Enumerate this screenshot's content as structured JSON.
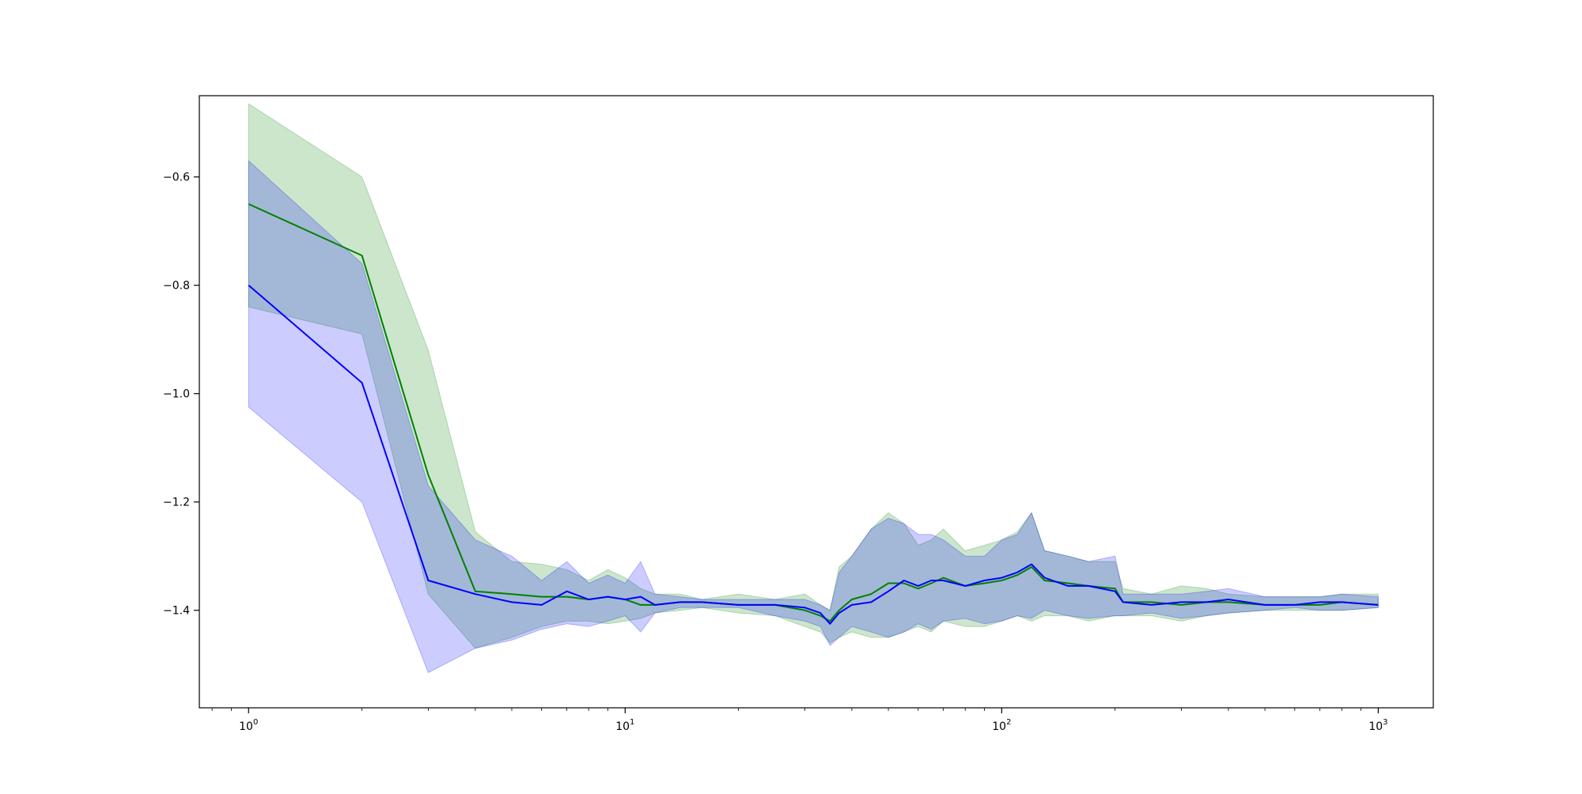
{
  "colors": {
    "green": "#008000",
    "blue": "#0000ff",
    "green_fill": "#008000",
    "blue_fill": "#0000ff",
    "axes": "#000000"
  },
  "chart_data": {
    "type": "line",
    "title": "",
    "xlabel": "",
    "ylabel": "",
    "xscale": "log",
    "xlim": [
      0.74,
      1400
    ],
    "ylim": [
      -1.58,
      -0.45
    ],
    "grid": false,
    "legend": "none",
    "x_ticks": [
      {
        "value": 1,
        "base": "10",
        "exp": "0"
      },
      {
        "value": 10,
        "base": "10",
        "exp": "1"
      },
      {
        "value": 100,
        "base": "10",
        "exp": "2"
      },
      {
        "value": 1000,
        "base": "10",
        "exp": "3"
      }
    ],
    "y_ticks": [
      {
        "value": -0.6,
        "label": "−0.6"
      },
      {
        "value": -0.8,
        "label": "−0.8"
      },
      {
        "value": -1.0,
        "label": "−1.0"
      },
      {
        "value": -1.2,
        "label": "−1.2"
      },
      {
        "value": -1.4,
        "label": "−1.4"
      }
    ],
    "series": [
      {
        "color": "green",
        "x": [
          1,
          2,
          3,
          4,
          5,
          6,
          7,
          8,
          9,
          10,
          11,
          12,
          14,
          16,
          20,
          25,
          30,
          33,
          35,
          37,
          40,
          45,
          50,
          55,
          60,
          65,
          70,
          80,
          90,
          100,
          110,
          120,
          130,
          150,
          170,
          200,
          210,
          250,
          300,
          350,
          400,
          500,
          600,
          700,
          800,
          1000
        ],
        "y": [
          -0.65,
          -0.745,
          -1.15,
          -1.365,
          -1.37,
          -1.375,
          -1.375,
          -1.38,
          -1.375,
          -1.38,
          -1.39,
          -1.39,
          -1.385,
          -1.385,
          -1.39,
          -1.39,
          -1.4,
          -1.41,
          -1.42,
          -1.4,
          -1.38,
          -1.37,
          -1.35,
          -1.35,
          -1.36,
          -1.35,
          -1.34,
          -1.355,
          -1.35,
          -1.345,
          -1.335,
          -1.32,
          -1.345,
          -1.35,
          -1.355,
          -1.36,
          -1.385,
          -1.385,
          -1.39,
          -1.385,
          -1.385,
          -1.39,
          -1.39,
          -1.39,
          -1.385,
          -1.39
        ],
        "upper": [
          -0.465,
          -0.6,
          -0.92,
          -1.255,
          -1.31,
          -1.315,
          -1.325,
          -1.345,
          -1.325,
          -1.34,
          -1.36,
          -1.37,
          -1.37,
          -1.38,
          -1.37,
          -1.38,
          -1.37,
          -1.39,
          -1.4,
          -1.32,
          -1.3,
          -1.25,
          -1.22,
          -1.24,
          -1.28,
          -1.27,
          -1.25,
          -1.29,
          -1.28,
          -1.27,
          -1.255,
          -1.22,
          -1.29,
          -1.3,
          -1.31,
          -1.31,
          -1.36,
          -1.37,
          -1.355,
          -1.36,
          -1.37,
          -1.375,
          -1.375,
          -1.375,
          -1.37,
          -1.37
        ],
        "lower": [
          -0.84,
          -0.89,
          -1.37,
          -1.47,
          -1.45,
          -1.43,
          -1.42,
          -1.42,
          -1.425,
          -1.42,
          -1.415,
          -1.405,
          -1.4,
          -1.395,
          -1.405,
          -1.41,
          -1.43,
          -1.44,
          -1.46,
          -1.45,
          -1.44,
          -1.45,
          -1.45,
          -1.44,
          -1.43,
          -1.44,
          -1.42,
          -1.43,
          -1.43,
          -1.42,
          -1.41,
          -1.42,
          -1.41,
          -1.41,
          -1.42,
          -1.41,
          -1.41,
          -1.41,
          -1.42,
          -1.41,
          -1.405,
          -1.4,
          -1.4,
          -1.4,
          -1.4,
          -1.395
        ]
      },
      {
        "color": "blue",
        "x": [
          1,
          2,
          3,
          4,
          5,
          6,
          7,
          8,
          9,
          10,
          11,
          12,
          14,
          16,
          20,
          25,
          30,
          33,
          35,
          37,
          40,
          45,
          50,
          55,
          60,
          65,
          70,
          80,
          90,
          100,
          110,
          120,
          130,
          150,
          170,
          200,
          210,
          250,
          300,
          350,
          400,
          500,
          600,
          700,
          800,
          1000
        ],
        "y": [
          -0.8,
          -0.98,
          -1.345,
          -1.37,
          -1.385,
          -1.39,
          -1.365,
          -1.38,
          -1.375,
          -1.38,
          -1.375,
          -1.39,
          -1.385,
          -1.385,
          -1.39,
          -1.39,
          -1.395,
          -1.405,
          -1.425,
          -1.405,
          -1.39,
          -1.385,
          -1.365,
          -1.345,
          -1.355,
          -1.345,
          -1.345,
          -1.355,
          -1.345,
          -1.34,
          -1.33,
          -1.315,
          -1.34,
          -1.355,
          -1.355,
          -1.365,
          -1.385,
          -1.39,
          -1.385,
          -1.385,
          -1.38,
          -1.39,
          -1.39,
          -1.385,
          -1.385,
          -1.39
        ],
        "upper": [
          -0.57,
          -0.76,
          -1.17,
          -1.27,
          -1.3,
          -1.345,
          -1.31,
          -1.35,
          -1.335,
          -1.35,
          -1.31,
          -1.37,
          -1.375,
          -1.38,
          -1.38,
          -1.38,
          -1.38,
          -1.39,
          -1.4,
          -1.33,
          -1.3,
          -1.25,
          -1.23,
          -1.24,
          -1.26,
          -1.26,
          -1.27,
          -1.3,
          -1.3,
          -1.27,
          -1.26,
          -1.22,
          -1.29,
          -1.3,
          -1.31,
          -1.3,
          -1.37,
          -1.37,
          -1.37,
          -1.365,
          -1.36,
          -1.375,
          -1.375,
          -1.375,
          -1.37,
          -1.375
        ],
        "lower": [
          -1.025,
          -1.2,
          -1.515,
          -1.47,
          -1.455,
          -1.435,
          -1.425,
          -1.43,
          -1.42,
          -1.41,
          -1.44,
          -1.405,
          -1.395,
          -1.395,
          -1.395,
          -1.41,
          -1.42,
          -1.43,
          -1.465,
          -1.45,
          -1.43,
          -1.44,
          -1.45,
          -1.44,
          -1.425,
          -1.435,
          -1.42,
          -1.415,
          -1.425,
          -1.42,
          -1.41,
          -1.415,
          -1.4,
          -1.41,
          -1.415,
          -1.41,
          -1.41,
          -1.405,
          -1.415,
          -1.41,
          -1.405,
          -1.4,
          -1.395,
          -1.4,
          -1.4,
          -1.395
        ]
      }
    ]
  }
}
